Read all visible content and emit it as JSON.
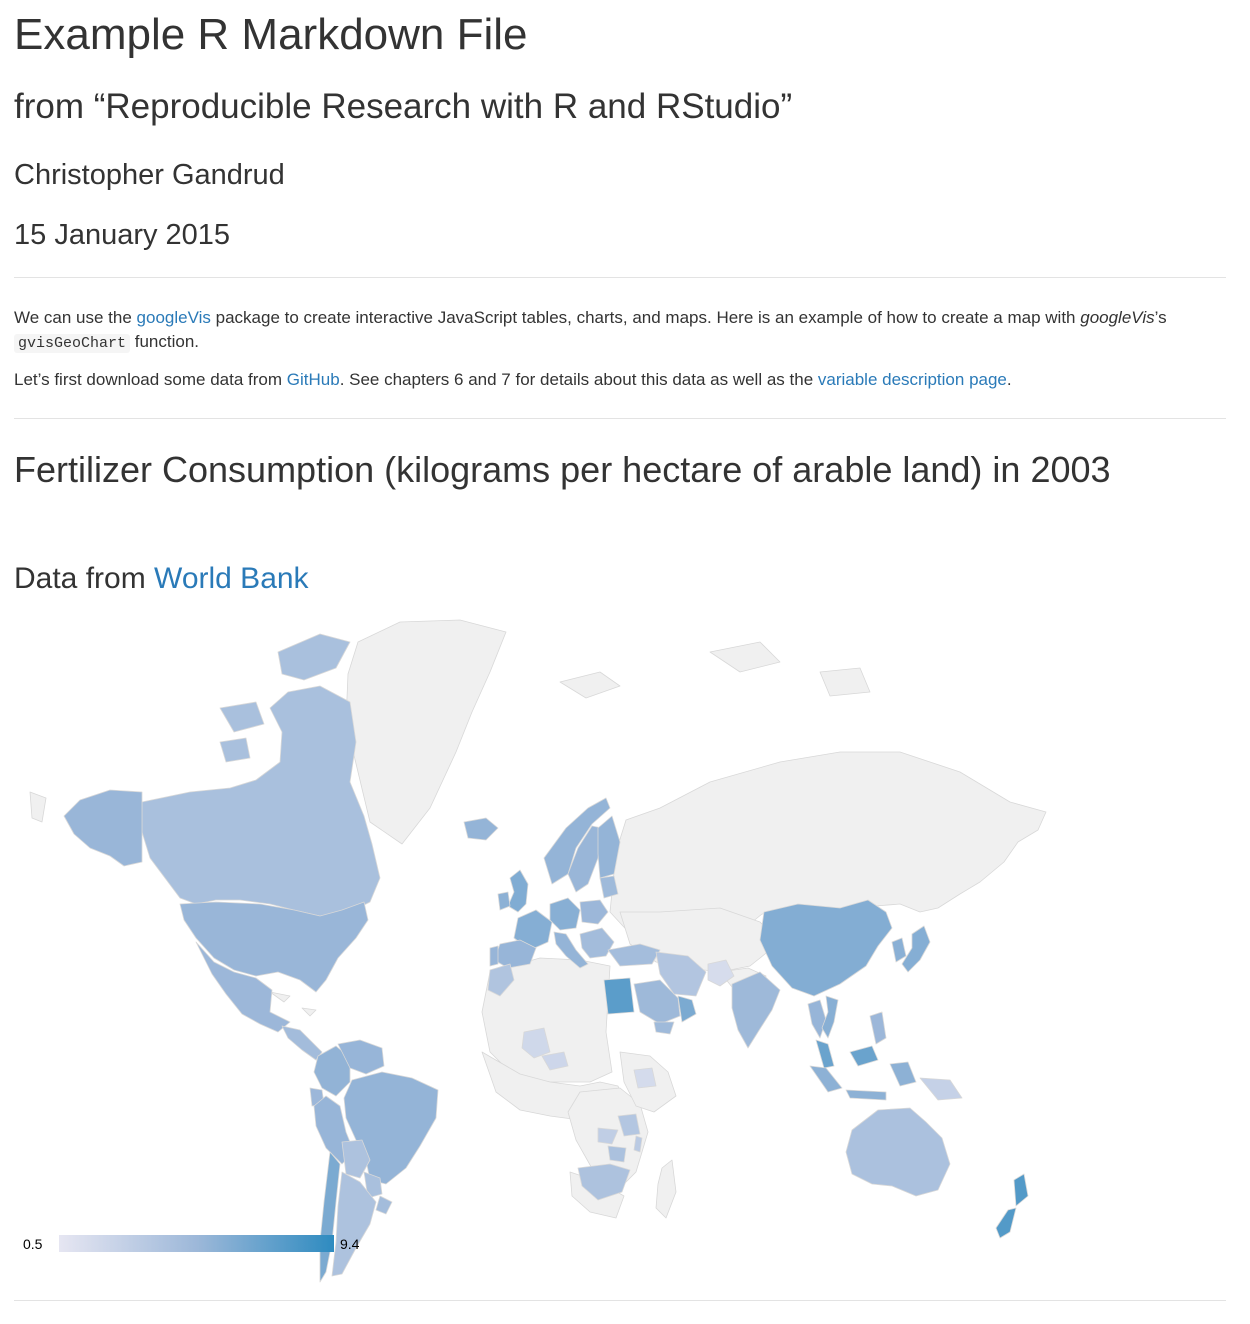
{
  "document": {
    "title": "Example R Markdown File",
    "subtitle": "from “Reproducible Research with R and RStudio”",
    "author": "Christopher Gandrud",
    "date": "15 January 2015"
  },
  "intro": {
    "p1_before": "We can use the ",
    "p1_link": "googleVis",
    "p1_after": " package to create interactive JavaScript tables, charts, and maps. Here is an example of how to create a map with ",
    "p1_em": "googleVis",
    "p1_possessive": "’s ",
    "p1_code": "gvisGeoChart",
    "p1_end": " function.",
    "p2_before": "Let’s first download some data from ",
    "p2_link1": "GitHub",
    "p2_middle": ". See chapters 6 and 7 for details about this data as well as the ",
    "p2_link2": "variable description page",
    "p2_end": "."
  },
  "section": {
    "heading": "Fertilizer Consumption (kilograms per hectare of arable land) in 2003",
    "source_label": "Data from ",
    "source_link": "World Bank"
  },
  "chart_data": {
    "type": "geo",
    "legend": {
      "min": 0.5,
      "max": 9.4,
      "min_label": "0.5",
      "max_label": "9.4",
      "colors": [
        "#e6e6f2",
        "#9db8d9",
        "#2e8bc0"
      ]
    },
    "no_data_color": "#f0f0f0",
    "border_color": "#d8d8d8",
    "values": {
      "Canada": 4.2,
      "United States": 5.1,
      "Alaska (US)": 5.1,
      "Mexico": 5.0,
      "Central America": 4.6,
      "Colombia": 5.4,
      "Venezuela": 5.2,
      "Ecuador": 5.0,
      "Peru": 5.2,
      "Brazil": 5.3,
      "Bolivia": 4.0,
      "Paraguay": 4.2,
      "Chile": 6.3,
      "Argentina": 4.0,
      "Uruguay": 4.6,
      "United Kingdom": 6.1,
      "Ireland": 5.6,
      "France": 5.9,
      "Spain": 5.2,
      "Portugal": 5.2,
      "Germany": 5.8,
      "Italy": 5.3,
      "Norway": 5.3,
      "Sweden": 5.1,
      "Finland": 5.3,
      "Iceland": 5.3,
      "Poland": 5.0,
      "Baltics": 4.8,
      "Balkans": 4.6,
      "Turkey": 4.5,
      "Morocco": 3.8,
      "Egypt": 7.6,
      "Saudi Arabia": 4.9,
      "Oman": 6.3,
      "Yemen": 4.8,
      "Iran": 3.7,
      "Afghanistan": 1.5,
      "India": 4.9,
      "China": 6.0,
      "Korea": 5.7,
      "Japan": 5.9,
      "Thailand": 5.2,
      "Vietnam": 5.8,
      "Malaysia": 7.0,
      "Indonesia": 5.6,
      "Philippines": 5.0,
      "Papua New Guinea": 2.5,
      "Australia": 4.1,
      "New Zealand": 7.9,
      "Mali": 1.9,
      "Burkina Faso": 2.0,
      "Ethiopia": 1.6,
      "Tanzania": 3.6,
      "Zambia": 2.8,
      "Malawi": 3.2,
      "Zimbabwe": 4.1,
      "South Africa": 4.0
    }
  }
}
